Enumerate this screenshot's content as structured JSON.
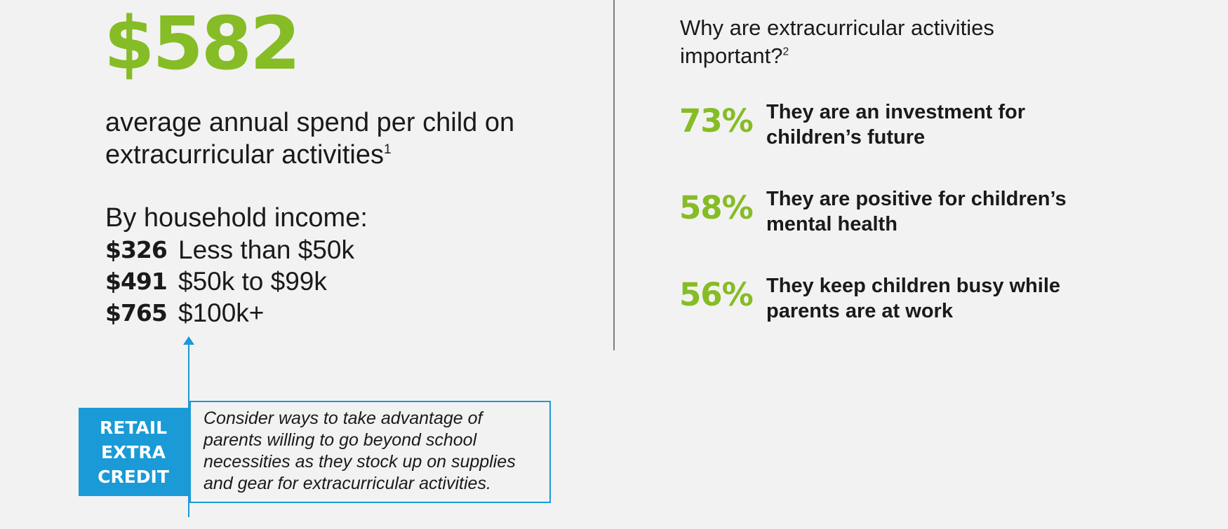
{
  "headline": {
    "amount": "$582",
    "desc_line1": "average annual spend per child on",
    "desc_line2": "extracurricular activities",
    "desc_footnote": "1"
  },
  "income": {
    "heading": "By household income:",
    "rows": [
      {
        "amount": "$326",
        "label": "Less than $50k"
      },
      {
        "amount": "$491",
        "label": "$50k to $99k"
      },
      {
        "amount": "$765",
        "label": "$100k+"
      }
    ]
  },
  "why": {
    "title_line1": "Why are extracurricular activities",
    "title_line2": "important?",
    "title_footnote": "2",
    "reasons": [
      {
        "pct": "73%",
        "line1": "They are an investment for",
        "line2": "children’s future"
      },
      {
        "pct": "58%",
        "line1": "They are positive for children’s",
        "line2": "mental health"
      },
      {
        "pct": "56%",
        "line1": "They keep children busy while",
        "line2": "parents are at work"
      }
    ]
  },
  "callout": {
    "tag_lines": [
      "RETAIL",
      "EXTRA",
      "CREDIT"
    ],
    "text_lines": [
      "Consider ways to take advantage of",
      "parents willing to go beyond school",
      "necessities as they stock up on supplies",
      "and gear for extracurricular activities."
    ]
  },
  "colors": {
    "accent_green": "#86bc25",
    "accent_blue": "#1a9ad6",
    "background": "#f2f2f2"
  }
}
